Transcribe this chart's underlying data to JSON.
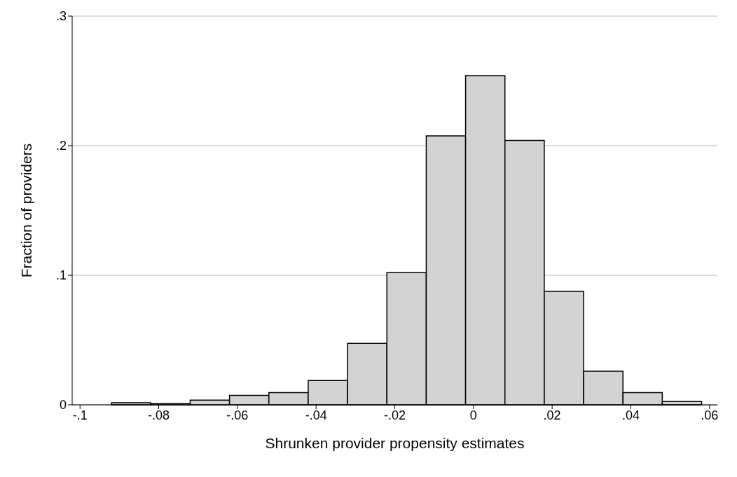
{
  "chart_data": {
    "type": "histogram",
    "xlabel": "Shrunken provider propensity estimates",
    "ylabel": "Fraction of providers",
    "bins": [
      -0.092,
      -0.082,
      -0.072,
      -0.062,
      -0.052,
      -0.042,
      -0.032,
      -0.022,
      -0.012,
      -0.002,
      0.008,
      0.018,
      0.028,
      0.038,
      0.048,
      0.058
    ],
    "values": [
      0.0016,
      0.001,
      0.0037,
      0.0073,
      0.0094,
      0.0188,
      0.0475,
      0.102,
      0.2076,
      0.254,
      0.204,
      0.0876,
      0.026,
      0.0094,
      0.0026
    ],
    "color": "#d3d3d3",
    "xlim": [
      -0.102,
      0.062
    ],
    "xticks": [
      {
        "value": -0.1,
        "label": "-.1"
      },
      {
        "value": -0.08,
        "label": "-.08"
      },
      {
        "value": -0.06,
        "label": "-.06"
      },
      {
        "value": -0.04,
        "label": "-.04"
      },
      {
        "value": -0.02,
        "label": "-.02"
      },
      0,
      {
        "value": 0.02,
        "label": ".02"
      },
      {
        "value": 0.04,
        "label": ".04"
      },
      {
        "value": 0.06,
        "label": ".06"
      }
    ],
    "ylim": [
      0,
      0.3
    ],
    "yticks": [
      0,
      {
        "value": 0.1,
        "label": ".1"
      },
      {
        "value": 0.2,
        "label": ".2"
      },
      {
        "value": 0.3,
        "label": ".3"
      }
    ],
    "grid": "y"
  }
}
